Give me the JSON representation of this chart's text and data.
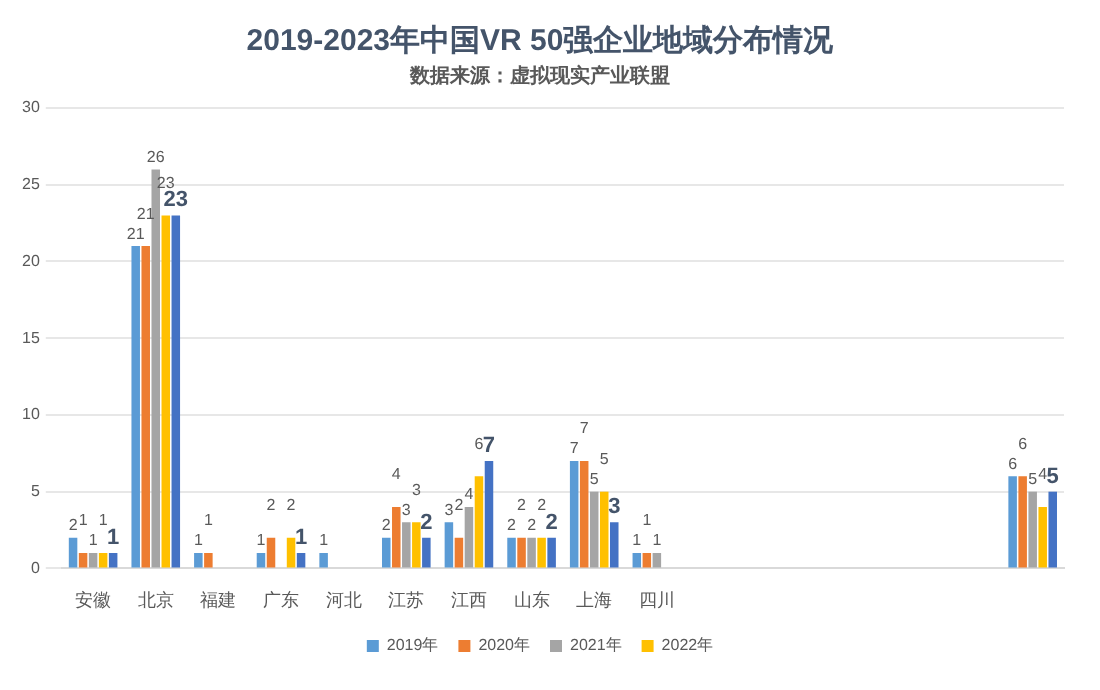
{
  "chart_data": {
    "type": "bar",
    "title": "2019-2023年中国VR 50强企业地域分布情况",
    "subtitle": "数据来源：虚拟现实产业联盟",
    "categories": [
      "安徽",
      "北京",
      "福建",
      "广东",
      "河北",
      "江苏",
      "江西",
      "山东",
      "上海",
      "四川",
      null,
      null,
      null,
      null,
      null,
      null
    ],
    "series": [
      {
        "name": "2019年",
        "color": "#5b9bd5",
        "values": [
          2,
          21,
          1,
          1,
          1,
          2,
          3,
          2,
          7,
          1,
          null,
          null,
          null,
          null,
          null,
          6
        ]
      },
      {
        "name": "2020年",
        "color": "#ed7d31",
        "values": [
          1,
          21,
          1,
          2,
          null,
          4,
          2,
          2,
          7,
          1,
          null,
          null,
          null,
          null,
          null,
          6
        ]
      },
      {
        "name": "2021年",
        "color": "#a5a5a5",
        "values": [
          1,
          26,
          null,
          null,
          null,
          3,
          4,
          2,
          5,
          1,
          null,
          null,
          null,
          null,
          null,
          5
        ]
      },
      {
        "name": "2022年",
        "color": "#ffc000",
        "values": [
          1,
          23,
          null,
          2,
          null,
          3,
          6,
          2,
          5,
          null,
          null,
          null,
          null,
          null,
          null,
          4
        ]
      },
      {
        "color": "#4472c4",
        "values": [
          1,
          23,
          null,
          1,
          null,
          2,
          7,
          2,
          3,
          null,
          null,
          null,
          null,
          null,
          null,
          5
        ]
      }
    ],
    "ylim": [
      0,
      30
    ],
    "yticks": [
      0,
      5,
      10,
      15,
      20,
      25,
      30
    ],
    "grid": "y",
    "legend": "bottom",
    "data_labels": true
  }
}
